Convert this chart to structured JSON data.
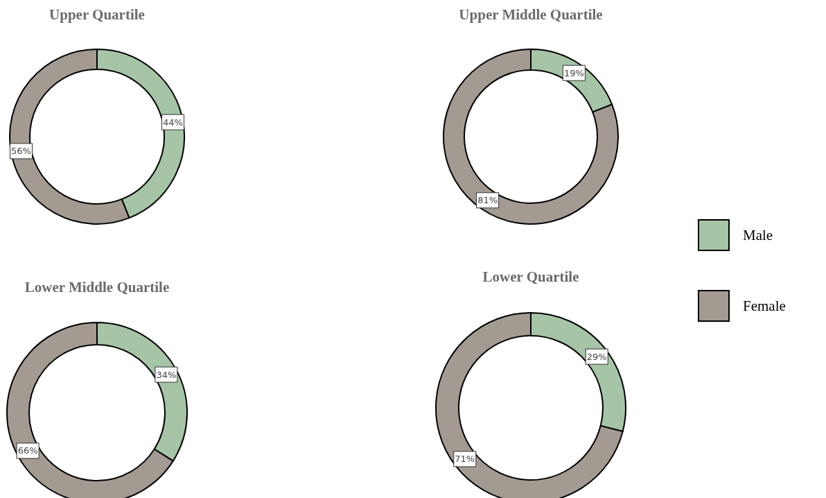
{
  "chart_data": [
    {
      "type": "donut",
      "title": "Upper Quartile",
      "categories": [
        null,
        null
      ],
      "values": [
        44,
        56
      ],
      "colors": [
        "#a6c4a6",
        "#a39a92"
      ],
      "value_labels": [
        "44%",
        "56%"
      ]
    },
    {
      "type": "donut",
      "title": "Upper Middle Quartile",
      "categories": [
        "Male",
        "Female"
      ],
      "values": [
        19,
        81
      ],
      "colors": [
        "#a6c4a6",
        "#a39a92"
      ],
      "value_labels": [
        "19%",
        "81%"
      ],
      "legend": "right"
    },
    {
      "type": "donut",
      "title": "Lower Middle Quartile",
      "categories": [
        null,
        null
      ],
      "values": [
        34,
        66
      ],
      "colors": [
        "#a6c4a6",
        "#a39a92"
      ],
      "value_labels": [
        "34%",
        "66%"
      ]
    },
    {
      "type": "donut",
      "title": "Lower Quartile",
      "categories": [
        null,
        null
      ],
      "values": [
        29,
        71
      ],
      "colors": [
        "#a6c4a6",
        "#a39a92"
      ],
      "value_labels": [
        "29%",
        "71%"
      ]
    }
  ]
}
